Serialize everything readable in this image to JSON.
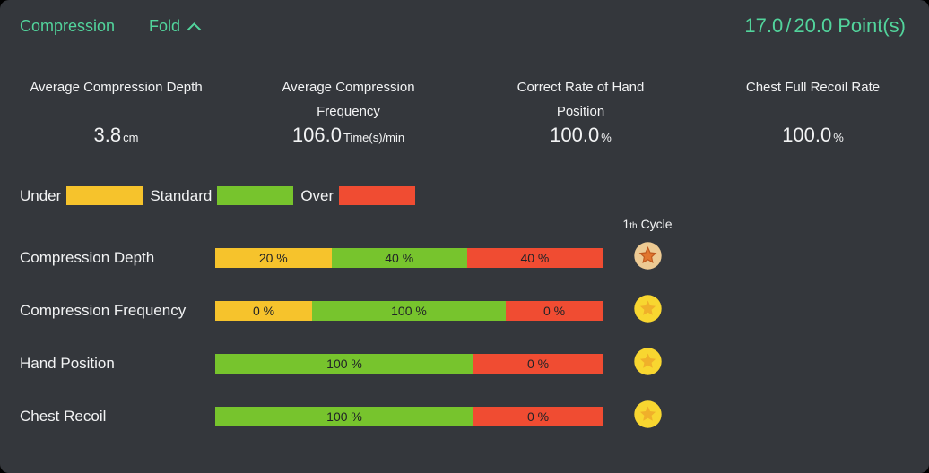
{
  "colors": {
    "card_bg": "#34373c",
    "text": "#f2f3f4",
    "accent_green": "#52d49c",
    "under": "#f6c32c",
    "standard": "#77c42d",
    "over": "#f04c32",
    "bar_text": "#212327",
    "medal_bronze_circle": "#edca93",
    "medal_bronze_star": "#e1762f",
    "medal_bronze_star_stroke": "#c05a20",
    "medal_gold_circle": "#f8d630",
    "medal_gold_star": "#f0b02a"
  },
  "header": {
    "title": "Compression",
    "fold_label": "Fold",
    "fold_icon": "chevron-up-icon",
    "score": {
      "value": "17.0",
      "separator": "/",
      "total": "20.0",
      "suffix": "Point(s)"
    }
  },
  "stats": [
    {
      "label": "Average Compression Depth",
      "value": "3.8",
      "unit": "cm"
    },
    {
      "label": "Average Compression Frequency",
      "value": "106.0",
      "unit": "Time(s)/min"
    },
    {
      "label": "Correct Rate of Hand Position",
      "value": "100.0",
      "unit": "%"
    },
    {
      "label": "Chest Full Recoil Rate",
      "value": "100.0",
      "unit": "%"
    }
  ],
  "legend": [
    {
      "label": "Under",
      "key": "under"
    },
    {
      "label": "Standard",
      "key": "standard"
    },
    {
      "label": "Over",
      "key": "over"
    }
  ],
  "cycle_header": {
    "number": "1",
    "ordinal_suffix": "th",
    "word": "Cycle"
  },
  "chart_data": {
    "type": "bar",
    "stacked": true,
    "orientation": "horizontal",
    "unit": "%",
    "categories": [
      "Compression Depth",
      "Compression Frequency",
      "Hand Position",
      "Chest Recoil"
    ],
    "series": [
      {
        "name": "Under",
        "color": "#f6c32c",
        "values": [
          20,
          0,
          null,
          null
        ]
      },
      {
        "name": "Standard",
        "color": "#77c42d",
        "values": [
          40,
          100,
          100,
          100
        ]
      },
      {
        "name": "Over",
        "color": "#f04c32",
        "values": [
          40,
          0,
          0,
          0
        ]
      }
    ],
    "rows": [
      {
        "label": "Compression Depth",
        "segments": [
          {
            "key": "under",
            "pct": 20,
            "text": "20 %"
          },
          {
            "key": "standard",
            "pct": 40,
            "text": "40 %"
          },
          {
            "key": "over",
            "pct": 40,
            "text": "40 %"
          }
        ],
        "medal": "bronze"
      },
      {
        "label": "Compression Frequency",
        "segments": [
          {
            "key": "under",
            "pct": 0,
            "text": "0 %"
          },
          {
            "key": "standard",
            "pct": 100,
            "text": "100 %"
          },
          {
            "key": "over",
            "pct": 0,
            "text": "0 %"
          }
        ],
        "medal": "gold"
      },
      {
        "label": "Hand Position",
        "segments": [
          {
            "key": "standard",
            "pct": 100,
            "text": "100 %"
          },
          {
            "key": "over",
            "pct": 0,
            "text": "0 %"
          }
        ],
        "medal": "gold"
      },
      {
        "label": "Chest Recoil",
        "segments": [
          {
            "key": "standard",
            "pct": 100,
            "text": "100 %"
          },
          {
            "key": "over",
            "pct": 0,
            "text": "0 %"
          }
        ],
        "medal": "gold"
      }
    ]
  }
}
